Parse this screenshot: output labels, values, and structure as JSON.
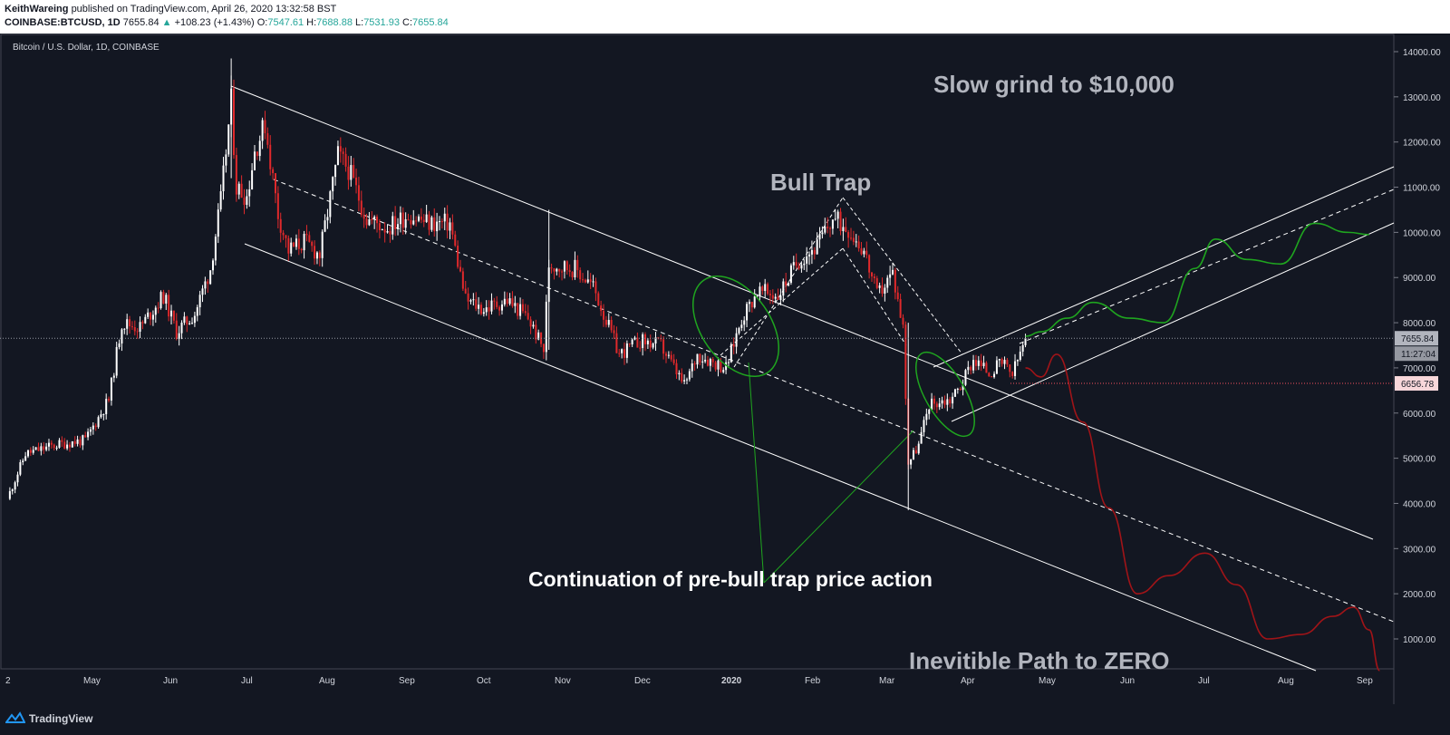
{
  "header": {
    "author": "KeithWareing",
    "published": "published on TradingView.com, April 26, 2020 13:32:58 BST",
    "symbol": "COINBASE:BTCUSD, 1D",
    "last": "7655.84",
    "change_arrow": "▲",
    "change": "+108.23 (+1.43%)",
    "o_label": "O:",
    "o_value": "7547.61",
    "h_label": "H:",
    "h_value": "7688.88",
    "l_label": "L:",
    "l_value": "7531.93",
    "c_label": "C:",
    "c_value": "7655.84"
  },
  "footer": {
    "brand": "TradingView"
  },
  "annotations": {
    "slow_grind": "Slow grind to $10,000",
    "bull_trap": "Bull Trap",
    "continuation": "Continuation of pre-bull trap price action",
    "zero_path": "Inevitible Path to ZERO"
  },
  "chart_data": {
    "type": "candlestick",
    "title": "Bitcoin / U.S. Dollar, 1D, COINBASE",
    "x_ticks": [
      "2",
      "May",
      "Jun",
      "Jul",
      "Aug",
      "Sep",
      "Oct",
      "Nov",
      "Dec",
      "2020",
      "Feb",
      "Mar",
      "Apr",
      "May",
      "Jun",
      "Jul",
      "Aug",
      "Sep"
    ],
    "y_ticks": [
      "14000.00",
      "13000.00",
      "12000.00",
      "11000.00",
      "10000.00",
      "9000.00",
      "8000.00",
      "7000.00",
      "6000.00",
      "5000.00",
      "4000.00",
      "3000.00",
      "2000.00",
      "1000.00"
    ],
    "ylim": [
      200,
      14500
    ],
    "price_labels": {
      "last_price": "7655.84",
      "countdown": "11:27:04",
      "marked_level": "6656.78"
    },
    "colors": {
      "background": "#131722",
      "up_candle": "#ffffff",
      "down_candle": "#e0292b",
      "trendline": "#ffffff",
      "bull_projection": "#1fa51f",
      "bear_projection": "#a01418",
      "annotation_text": "#b2b5be"
    },
    "price_path": [
      [
        "2019-04-01",
        4100
      ],
      [
        "2019-04-08",
        5100
      ],
      [
        "2019-04-20",
        5300
      ],
      [
        "2019-05-01",
        5400
      ],
      [
        "2019-05-10",
        6300
      ],
      [
        "2019-05-15",
        8000
      ],
      [
        "2019-05-22",
        7900
      ],
      [
        "2019-05-31",
        8600
      ],
      [
        "2019-06-05",
        7800
      ],
      [
        "2019-06-12",
        8200
      ],
      [
        "2019-06-18",
        9200
      ],
      [
        "2019-06-22",
        10700
      ],
      [
        "2019-06-26",
        12900
      ],
      [
        "2019-06-28",
        11000
      ],
      [
        "2019-07-02",
        10800
      ],
      [
        "2019-07-05",
        11800
      ],
      [
        "2019-07-09",
        12400
      ],
      [
        "2019-07-14",
        10400
      ],
      [
        "2019-07-18",
        9600
      ],
      [
        "2019-07-24",
        9800
      ],
      [
        "2019-07-30",
        9500
      ],
      [
        "2019-08-06",
        11700
      ],
      [
        "2019-08-10",
        11400
      ],
      [
        "2019-08-17",
        10300
      ],
      [
        "2019-08-25",
        10100
      ],
      [
        "2019-09-02",
        10400
      ],
      [
        "2019-09-10",
        10200
      ],
      [
        "2019-09-18",
        10200
      ],
      [
        "2019-09-24",
        8500
      ],
      [
        "2019-10-01",
        8300
      ],
      [
        "2019-10-10",
        8500
      ],
      [
        "2019-10-18",
        8100
      ],
      [
        "2019-10-24",
        7400
      ],
      [
        "2019-10-26",
        9300
      ],
      [
        "2019-11-05",
        9200
      ],
      [
        "2019-11-12",
        8800
      ],
      [
        "2019-11-22",
        7300
      ],
      [
        "2019-11-30",
        7600
      ],
      [
        "2019-12-08",
        7500
      ],
      [
        "2019-12-17",
        6600
      ],
      [
        "2019-12-22",
        7300
      ],
      [
        "2020-01-02",
        7000
      ],
      [
        "2020-01-08",
        8100
      ],
      [
        "2020-01-14",
        8700
      ],
      [
        "2020-01-22",
        8600
      ],
      [
        "2020-01-30",
        9400
      ],
      [
        "2020-02-06",
        9700
      ],
      [
        "2020-02-12",
        10300
      ],
      [
        "2020-02-18",
        10100
      ],
      [
        "2020-02-24",
        9600
      ],
      [
        "2020-02-29",
        8600
      ],
      [
        "2020-03-06",
        9100
      ],
      [
        "2020-03-10",
        7900
      ],
      [
        "2020-03-12",
        4900
      ],
      [
        "2020-03-16",
        5300
      ],
      [
        "2020-03-20",
        6200
      ],
      [
        "2020-03-28",
        6300
      ],
      [
        "2020-04-01",
        6600
      ],
      [
        "2020-04-06",
        7200
      ],
      [
        "2020-04-12",
        6900
      ],
      [
        "2020-04-17",
        7100
      ],
      [
        "2020-04-21",
        6850
      ],
      [
        "2020-04-26",
        7655
      ]
    ],
    "bull_scenario": [
      [
        "2020-04-26",
        7700
      ],
      [
        "2020-05-02",
        7800
      ],
      [
        "2020-05-12",
        8100
      ],
      [
        "2020-05-22",
        8450
      ],
      [
        "2020-06-05",
        8100
      ],
      [
        "2020-06-18",
        8000
      ],
      [
        "2020-06-30",
        9200
      ],
      [
        "2020-07-08",
        9850
      ],
      [
        "2020-07-20",
        9400
      ],
      [
        "2020-08-02",
        9300
      ],
      [
        "2020-08-15",
        10200
      ],
      [
        "2020-08-28",
        10000
      ],
      [
        "2020-09-05",
        9950
      ]
    ],
    "bear_scenario": [
      [
        "2020-04-26",
        7000
      ],
      [
        "2020-05-02",
        6800
      ],
      [
        "2020-05-08",
        7300
      ],
      [
        "2020-05-18",
        5800
      ],
      [
        "2020-05-28",
        3900
      ],
      [
        "2020-06-08",
        2000
      ],
      [
        "2020-06-20",
        2400
      ],
      [
        "2020-07-04",
        2900
      ],
      [
        "2020-07-16",
        2200
      ],
      [
        "2020-07-28",
        1000
      ],
      [
        "2020-08-10",
        1100
      ],
      [
        "2020-08-22",
        1500
      ],
      [
        "2020-08-30",
        1700
      ],
      [
        "2020-09-05",
        1200
      ],
      [
        "2020-09-09",
        300
      ]
    ]
  }
}
